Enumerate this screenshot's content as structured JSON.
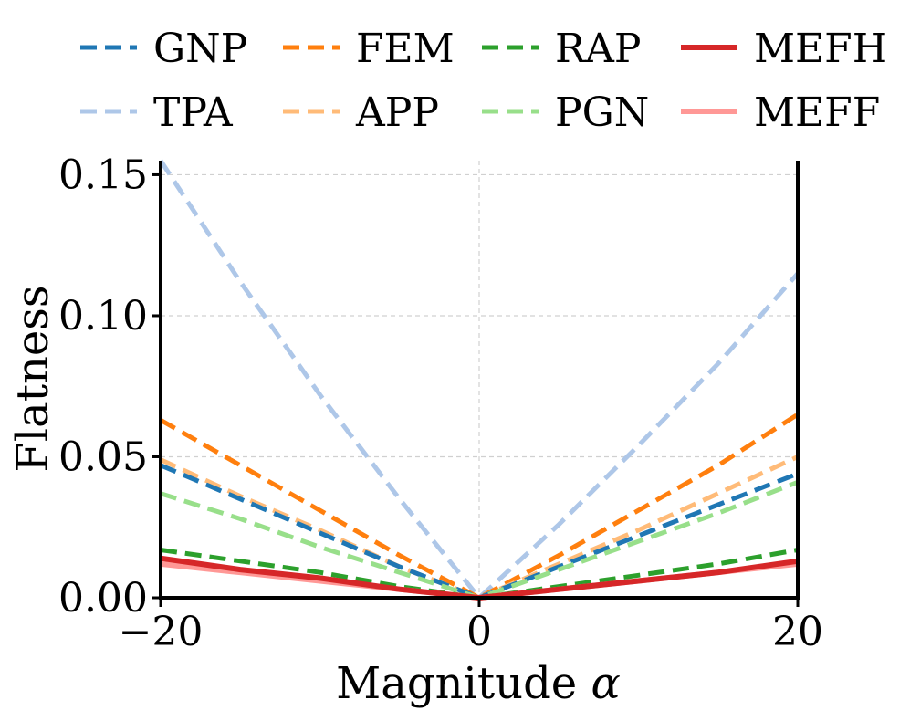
{
  "chart_data": {
    "type": "line",
    "title": "",
    "xlabel": "Magnitude",
    "xlabel_symbol": "α",
    "ylabel": "Flatness",
    "xlim": [
      -20,
      20
    ],
    "ylim": [
      0,
      0.155
    ],
    "xticks": [
      -20,
      0,
      20
    ],
    "xtick_labels": [
      "−20",
      "0",
      "20"
    ],
    "yticks": [
      0.0,
      0.05,
      0.1,
      0.15
    ],
    "ytick_labels": [
      "0.00",
      "0.05",
      "0.10",
      "0.15"
    ],
    "grid": true,
    "legend_position": "top",
    "x": [
      -20,
      -15,
      -10,
      -5,
      0,
      5,
      10,
      15,
      20
    ],
    "series": [
      {
        "name": "GNP",
        "color": "#1f77b4",
        "style": "dashed",
        "values": [
          0.047,
          0.035,
          0.023,
          0.011,
          0.0,
          0.011,
          0.022,
          0.033,
          0.044
        ]
      },
      {
        "name": "FEM",
        "color": "#ff7f0e",
        "style": "dashed",
        "values": [
          0.063,
          0.047,
          0.031,
          0.015,
          0.0,
          0.015,
          0.031,
          0.047,
          0.065
        ]
      },
      {
        "name": "RAP",
        "color": "#2ca02c",
        "style": "dashed",
        "values": [
          0.017,
          0.013,
          0.009,
          0.004,
          0.0,
          0.004,
          0.008,
          0.012,
          0.017
        ]
      },
      {
        "name": "MEFH",
        "color": "#d62728",
        "style": "solid",
        "values": [
          0.014,
          0.01,
          0.007,
          0.003,
          0.0,
          0.003,
          0.006,
          0.009,
          0.013
        ]
      },
      {
        "name": "TPA",
        "color": "#aec7e8",
        "style": "dashed",
        "values": [
          0.155,
          0.112,
          0.072,
          0.035,
          0.0,
          0.026,
          0.054,
          0.083,
          0.115
        ]
      },
      {
        "name": "APP",
        "color": "#ffbb78",
        "style": "dashed",
        "values": [
          0.049,
          0.036,
          0.024,
          0.011,
          0.0,
          0.012,
          0.024,
          0.037,
          0.05
        ]
      },
      {
        "name": "PGN",
        "color": "#98df8a",
        "style": "dashed",
        "values": [
          0.037,
          0.028,
          0.018,
          0.009,
          0.0,
          0.01,
          0.02,
          0.03,
          0.041
        ]
      },
      {
        "name": "MEFF",
        "color": "#ff9896",
        "style": "solid",
        "values": [
          0.012,
          0.009,
          0.006,
          0.003,
          0.0,
          0.003,
          0.006,
          0.009,
          0.012
        ]
      }
    ]
  }
}
